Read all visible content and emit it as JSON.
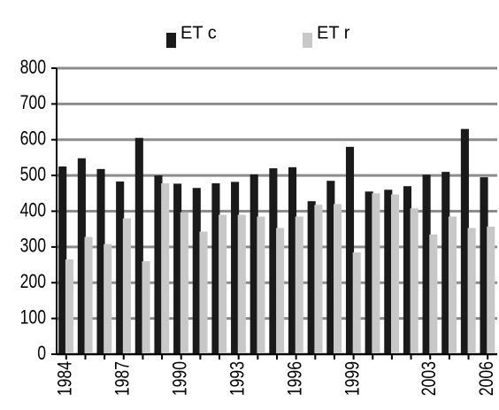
{
  "chart_data": {
    "type": "bar",
    "categories": [
      "1984",
      null,
      null,
      "1987",
      null,
      null,
      "1990",
      null,
      null,
      "1993",
      null,
      null,
      "1996",
      null,
      null,
      "1999",
      null,
      null,
      null,
      "2003",
      null,
      null,
      "2006"
    ],
    "series": [
      {
        "name": "ET c",
        "color": "#1a1a1a",
        "values": [
          525,
          548,
          518,
          483,
          605,
          500,
          477,
          465,
          478,
          482,
          503,
          520,
          523,
          428,
          485,
          580,
          455,
          460,
          470,
          502,
          510,
          630,
          495
        ]
      },
      {
        "name": "ET r",
        "color": "#c8c8c8",
        "values": [
          265,
          328,
          308,
          380,
          260,
          478,
          397,
          343,
          390,
          390,
          385,
          353,
          385,
          418,
          420,
          285,
          450,
          447,
          408,
          335,
          385,
          353,
          357
        ]
      }
    ],
    "ylim": [
      0,
      800
    ],
    "yticks": [
      0,
      100,
      200,
      300,
      400,
      500,
      600,
      700,
      800
    ],
    "grid": true,
    "legend": "top"
  }
}
